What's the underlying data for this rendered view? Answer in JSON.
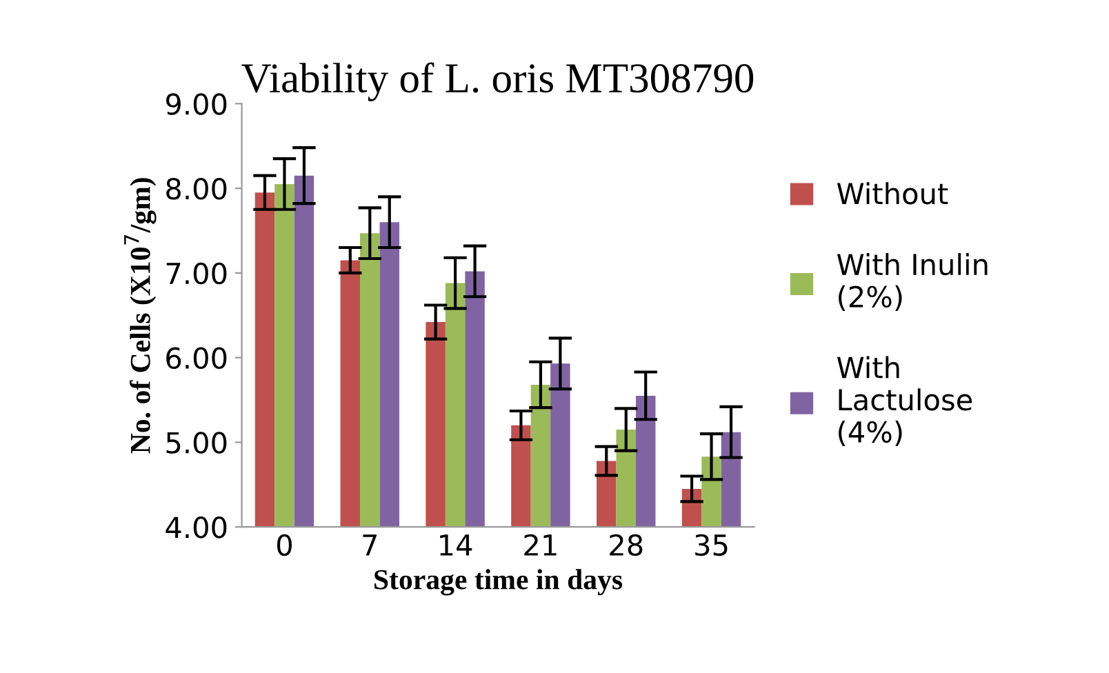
{
  "chart_data": {
    "type": "bar",
    "title": "Viability of L. oris MT308790",
    "xlabel": "Storage time in days",
    "ylabel": "No. of Cells (X10$^{7}$/gm)",
    "categories": [
      "0",
      "7",
      "14",
      "21",
      "28",
      "35"
    ],
    "series": [
      {
        "name": "Without",
        "color": "#c0504d",
        "values": [
          7.95,
          7.15,
          6.42,
          5.2,
          4.78,
          4.45
        ],
        "errors": [
          0.2,
          0.15,
          0.2,
          0.17,
          0.17,
          0.15
        ]
      },
      {
        "name": "With Inulin (2%)",
        "color": "#9bbb59",
        "values": [
          8.05,
          7.47,
          6.88,
          5.68,
          5.15,
          4.83
        ],
        "errors": [
          0.3,
          0.3,
          0.3,
          0.27,
          0.25,
          0.27
        ]
      },
      {
        "name": "With Lactulose (4%)",
        "color": "#8064a2",
        "values": [
          8.15,
          7.6,
          7.02,
          5.93,
          5.55,
          5.12
        ],
        "errors": [
          0.33,
          0.3,
          0.3,
          0.3,
          0.28,
          0.3
        ]
      }
    ],
    "ylim": [
      4,
      9
    ],
    "yticks": [
      {
        "value": 4,
        "label": "4.00"
      },
      {
        "value": 5,
        "label": "5.00"
      },
      {
        "value": 6,
        "label": "6.00"
      },
      {
        "value": 7,
        "label": "7.00"
      },
      {
        "value": 8,
        "label": "8.00"
      },
      {
        "value": 9,
        "label": "9.00"
      }
    ],
    "grid": false,
    "legend": "right"
  }
}
